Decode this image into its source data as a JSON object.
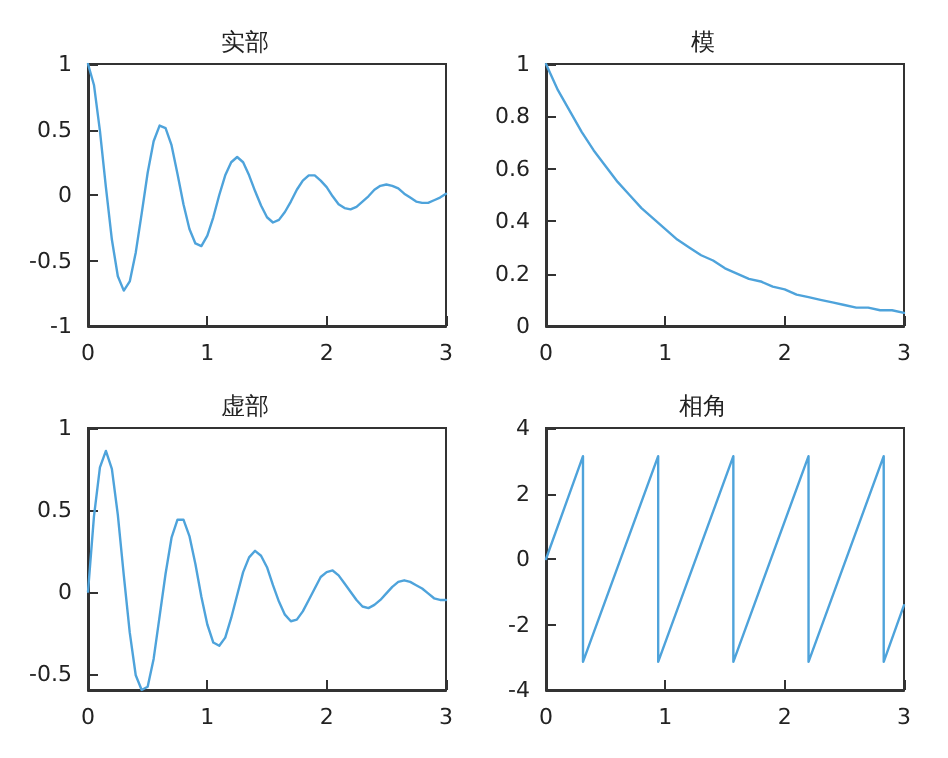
{
  "chart_data": [
    {
      "type": "line",
      "title": "实部",
      "x": [
        0,
        0.05,
        0.1,
        0.15,
        0.2,
        0.25,
        0.3,
        0.35,
        0.4,
        0.45,
        0.5,
        0.55,
        0.6,
        0.65,
        0.7,
        0.75,
        0.8,
        0.85,
        0.9,
        0.95,
        1,
        1.05,
        1.1,
        1.15,
        1.2,
        1.25,
        1.3,
        1.35,
        1.4,
        1.45,
        1.5,
        1.55,
        1.6,
        1.65,
        1.7,
        1.75,
        1.8,
        1.85,
        1.9,
        1.95,
        2,
        2.05,
        2.1,
        2.15,
        2.2,
        2.25,
        2.3,
        2.35,
        2.4,
        2.45,
        2.5,
        2.55,
        2.6,
        2.65,
        2.7,
        2.75,
        2.8,
        2.85,
        2.9,
        2.95,
        3
      ],
      "values": [
        1,
        0.84,
        0.49,
        0.06,
        -0.34,
        -0.62,
        -0.73,
        -0.66,
        -0.44,
        -0.14,
        0.17,
        0.41,
        0.53,
        0.51,
        0.38,
        0.16,
        -0.07,
        -0.26,
        -0.37,
        -0.39,
        -0.31,
        -0.17,
        0,
        0.15,
        0.25,
        0.29,
        0.25,
        0.15,
        0.03,
        -0.08,
        -0.17,
        -0.21,
        -0.19,
        -0.13,
        -0.05,
        0.04,
        0.11,
        0.15,
        0.15,
        0.11,
        0.06,
        -0.01,
        -0.07,
        -0.1,
        -0.11,
        -0.09,
        -0.05,
        -0.01,
        0.04,
        0.07,
        0.08,
        0.07,
        0.05,
        0.01,
        -0.02,
        -0.05,
        -0.06,
        -0.06,
        -0.04,
        -0.02,
        0.01
      ],
      "color": "#4ea3db",
      "xlim": [
        0,
        3
      ],
      "xticks": [
        0,
        1,
        2,
        3
      ],
      "ylim": [
        -1,
        1
      ],
      "yticks": [
        -1,
        -0.5,
        0,
        0.5,
        1
      ],
      "marker": "none",
      "line_style": "solid"
    },
    {
      "type": "line",
      "title": "模",
      "x": [
        0,
        0.1,
        0.2,
        0.3,
        0.4,
        0.5,
        0.6,
        0.7,
        0.8,
        0.9,
        1,
        1.1,
        1.2,
        1.3,
        1.4,
        1.5,
        1.6,
        1.7,
        1.8,
        1.9,
        2,
        2.1,
        2.2,
        2.3,
        2.4,
        2.5,
        2.6,
        2.7,
        2.8,
        2.9,
        3
      ],
      "values": [
        1,
        0.9,
        0.82,
        0.74,
        0.67,
        0.61,
        0.55,
        0.5,
        0.45,
        0.41,
        0.37,
        0.33,
        0.3,
        0.27,
        0.25,
        0.22,
        0.2,
        0.18,
        0.17,
        0.15,
        0.14,
        0.12,
        0.11,
        0.1,
        0.09,
        0.08,
        0.07,
        0.07,
        0.06,
        0.06,
        0.05
      ],
      "color": "#4ea3db",
      "xlim": [
        0,
        3
      ],
      "xticks": [
        0,
        1,
        2,
        3
      ],
      "ylim": [
        0,
        1
      ],
      "yticks": [
        0,
        0.2,
        0.4,
        0.6,
        0.8,
        1
      ],
      "marker": "none",
      "line_style": "solid"
    },
    {
      "type": "line",
      "title": "虚部",
      "x": [
        0,
        0.05,
        0.1,
        0.15,
        0.2,
        0.25,
        0.3,
        0.35,
        0.4,
        0.45,
        0.5,
        0.55,
        0.6,
        0.65,
        0.7,
        0.75,
        0.8,
        0.85,
        0.9,
        0.95,
        1,
        1.05,
        1.1,
        1.15,
        1.2,
        1.25,
        1.3,
        1.35,
        1.4,
        1.45,
        1.5,
        1.55,
        1.6,
        1.65,
        1.7,
        1.75,
        1.8,
        1.85,
        1.9,
        1.95,
        2,
        2.05,
        2.1,
        2.15,
        2.2,
        2.25,
        2.3,
        2.35,
        2.4,
        2.45,
        2.5,
        2.55,
        2.6,
        2.65,
        2.7,
        2.75,
        2.8,
        2.85,
        2.9,
        2.95,
        3
      ],
      "values": [
        0,
        0.46,
        0.76,
        0.86,
        0.75,
        0.47,
        0.1,
        -0.25,
        -0.51,
        -0.6,
        -0.58,
        -0.41,
        -0.15,
        0.11,
        0.33,
        0.44,
        0.44,
        0.34,
        0.17,
        -0.03,
        -0.2,
        -0.31,
        -0.33,
        -0.28,
        -0.16,
        -0.02,
        0.12,
        0.21,
        0.25,
        0.22,
        0.15,
        0.04,
        -0.06,
        -0.14,
        -0.18,
        -0.17,
        -0.12,
        -0.05,
        0.02,
        0.09,
        0.12,
        0.13,
        0.1,
        0.05,
        0,
        -0.05,
        -0.09,
        -0.1,
        -0.08,
        -0.05,
        -0.01,
        0.03,
        0.06,
        0.07,
        0.06,
        0.04,
        0.02,
        -0.01,
        -0.04,
        -0.05,
        -0.05
      ],
      "color": "#4ea3db",
      "xlim": [
        0,
        3
      ],
      "xticks": [
        0,
        1,
        2,
        3
      ],
      "ylim": [
        -0.6,
        1
      ],
      "yticks": [
        -0.5,
        0,
        0.5,
        1
      ],
      "marker": "none",
      "line_style": "solid"
    },
    {
      "type": "line",
      "title": "相角",
      "x": [
        0,
        0.31,
        0.31,
        0.94,
        0.94,
        1.57,
        1.57,
        2.2,
        2.2,
        2.83,
        2.83,
        3
      ],
      "values": [
        0,
        3.14,
        -3.14,
        3.14,
        -3.14,
        3.14,
        -3.14,
        3.14,
        -3.14,
        3.14,
        -3.14,
        -1.41
      ],
      "color": "#4ea3db",
      "xlim": [
        0,
        3
      ],
      "xticks": [
        0,
        1,
        2,
        3
      ],
      "ylim": [
        -4,
        4
      ],
      "yticks": [
        -4,
        -2,
        0,
        2,
        4
      ],
      "marker": "none",
      "line_style": "solid"
    }
  ]
}
